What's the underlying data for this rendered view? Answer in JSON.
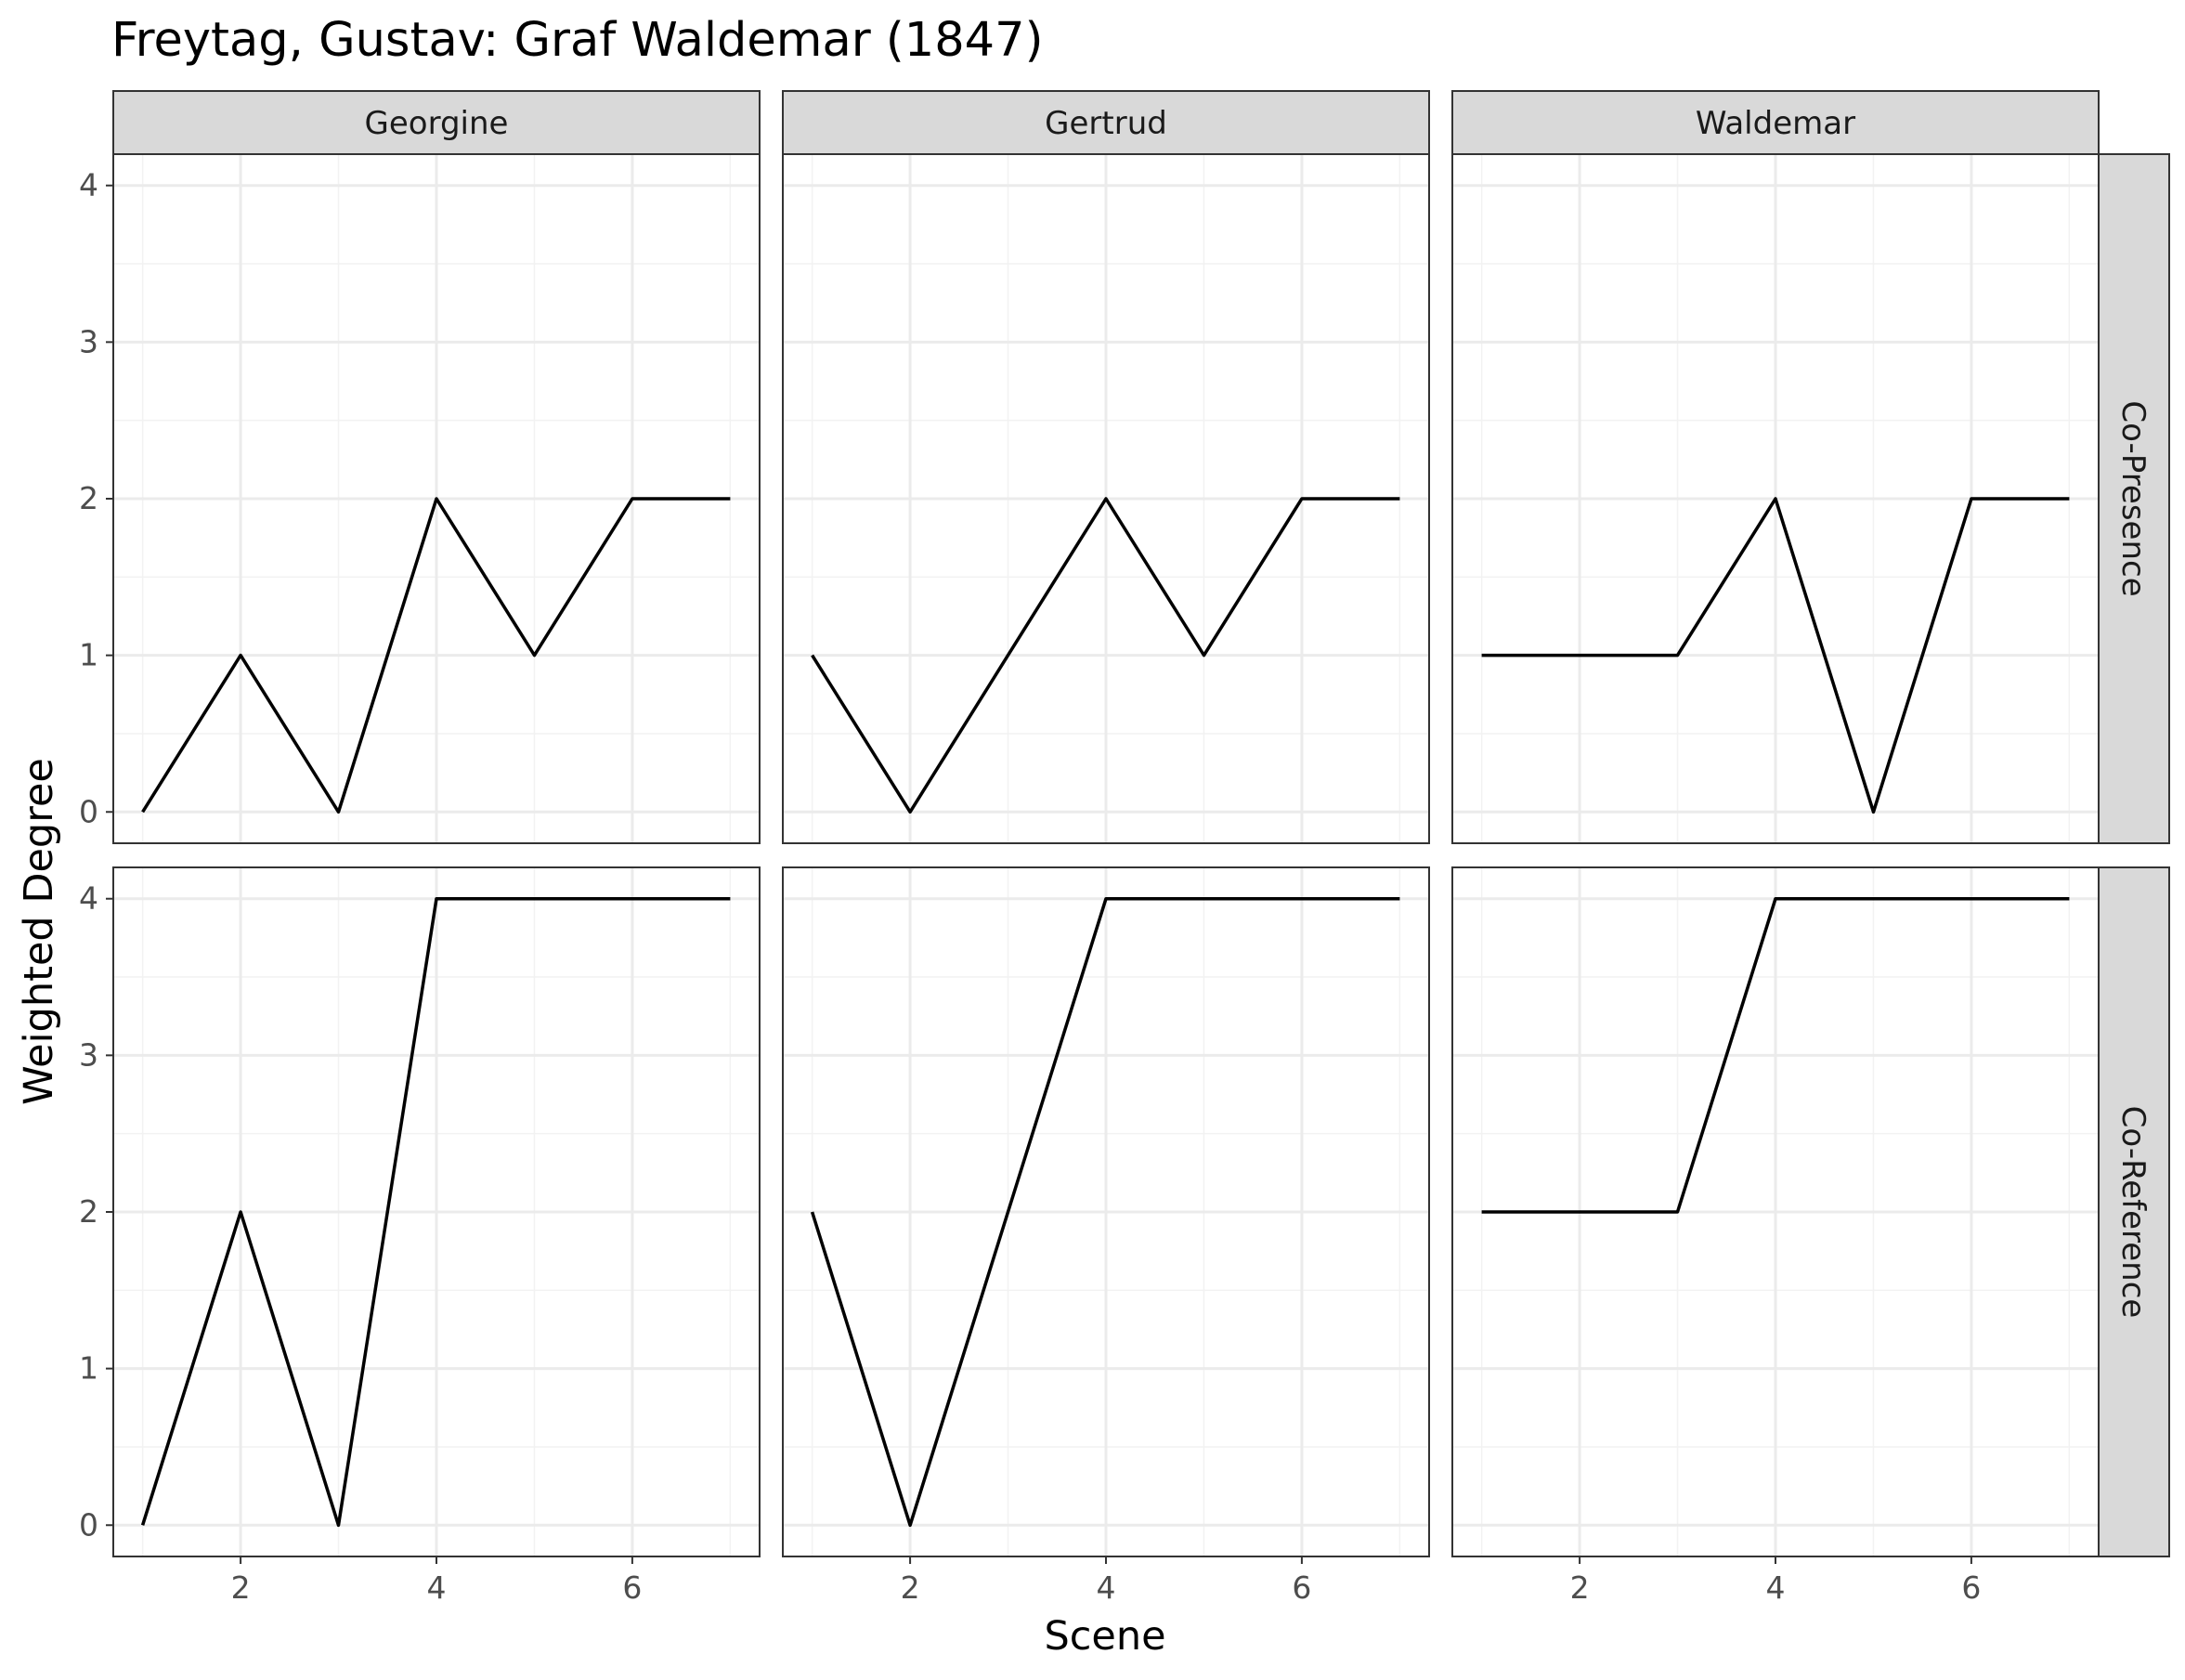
{
  "chart_data": {
    "type": "line",
    "title": "Freytag, Gustav: Graf Waldemar (1847)",
    "xlabel": "Scene",
    "ylabel": "Weighted Degree",
    "xlim": [
      0.7,
      7.3
    ],
    "ylim": [
      -0.2,
      4.2
    ],
    "x_ticks": [
      2,
      4,
      6
    ],
    "y_ticks": [
      0,
      1,
      2,
      3,
      4
    ],
    "grid": true,
    "legend": "none",
    "columns": [
      "Georgine",
      "Gertrud",
      "Waldemar"
    ],
    "rows": [
      "Co-Presence",
      "Co-Reference"
    ],
    "x": [
      1,
      2,
      3,
      4,
      5,
      6,
      7
    ],
    "panels": [
      {
        "row": "Co-Presence",
        "column": "Georgine",
        "values": [
          0,
          1,
          0,
          2,
          1,
          2,
          2
        ]
      },
      {
        "row": "Co-Presence",
        "column": "Gertrud",
        "values": [
          1,
          0,
          1,
          2,
          1,
          2,
          2
        ]
      },
      {
        "row": "Co-Presence",
        "column": "Waldemar",
        "values": [
          1,
          1,
          1,
          2,
          0,
          2,
          2
        ]
      },
      {
        "row": "Co-Reference",
        "column": "Georgine",
        "values": [
          0,
          2,
          0,
          4,
          4,
          4,
          4
        ]
      },
      {
        "row": "Co-Reference",
        "column": "Gertrud",
        "values": [
          2,
          0,
          2,
          4,
          4,
          4,
          4
        ]
      },
      {
        "row": "Co-Reference",
        "column": "Waldemar",
        "values": [
          2,
          2,
          2,
          4,
          4,
          4,
          4
        ]
      }
    ]
  }
}
